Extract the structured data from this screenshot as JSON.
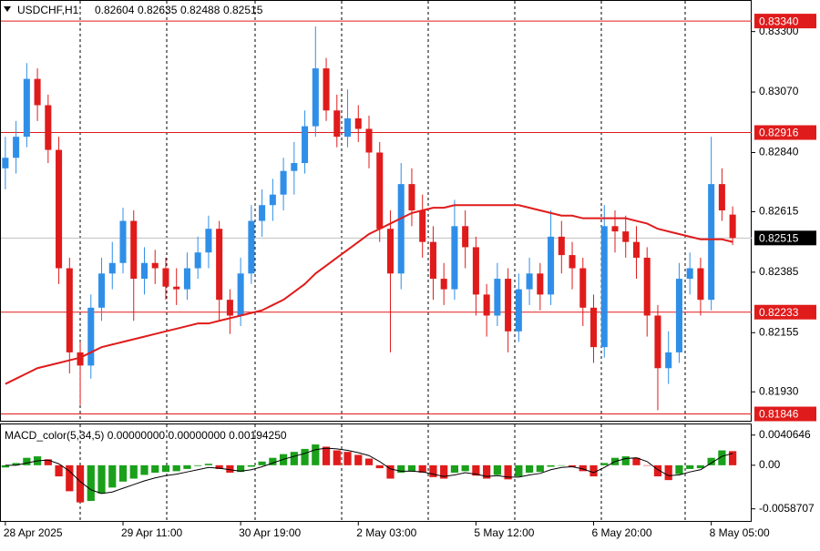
{
  "chart_data": {
    "type": "candlestick",
    "title": "USDCHF,H1",
    "up_color": "#2f8fe8",
    "down_color": "#e01b1b",
    "ylim": [
      0.8182,
      0.8342
    ],
    "yticks": [
      {
        "value": 0.833,
        "label": "0.83300"
      },
      {
        "value": 0.8307,
        "label": "0.83070"
      },
      {
        "value": 0.8284,
        "label": "0.82840"
      },
      0.82615,
      0.82385,
      0.82155,
      {
        "value": 0.8193,
        "label": "0.81930"
      }
    ],
    "xlim": [
      -0.5,
      68.5
    ],
    "xticks": [
      {
        "value": 0,
        "label": "28 Apr 2025"
      },
      {
        "value": 11,
        "label": "29 Apr 11:00"
      },
      {
        "value": 22,
        "label": "30 Apr 19:00"
      },
      {
        "value": 33,
        "label": "2 May 03:00"
      },
      {
        "value": 44,
        "label": "5 May 12:00"
      },
      {
        "value": 55,
        "label": "6 May 20:00"
      },
      {
        "value": 66,
        "label": "8 May 05:00"
      }
    ],
    "levels": [
      {
        "value": 0.8334,
        "label": "0.83340"
      },
      0.82916,
      0.82233,
      0.81846
    ],
    "level_color": "#e01b1b",
    "candles": [
      [
        0.8278,
        0.829,
        0.827,
        0.8282
      ],
      [
        0.8282,
        0.8296,
        0.8276,
        0.829
      ],
      [
        0.829,
        0.8318,
        0.8286,
        0.8312
      ],
      [
        0.8312,
        0.8316,
        0.8296,
        0.8302
      ],
      [
        0.8302,
        0.8306,
        0.828,
        0.8285
      ],
      [
        0.8285,
        0.829,
        0.8234,
        0.824
      ],
      [
        0.824,
        0.8244,
        0.82,
        0.8208
      ],
      [
        0.8208,
        0.8212,
        0.8188,
        0.8203
      ],
      [
        0.8203,
        0.823,
        0.8198,
        0.8225
      ],
      [
        0.8225,
        0.8244,
        0.822,
        0.8238
      ],
      [
        0.8238,
        0.825,
        0.8232,
        0.8242
      ],
      [
        0.8242,
        0.8263,
        0.8238,
        0.8258
      ],
      [
        0.8258,
        0.8262,
        0.822,
        0.8236
      ],
      [
        0.8236,
        0.8248,
        0.823,
        0.8242
      ],
      [
        0.8242,
        0.8247,
        0.8234,
        0.824
      ],
      [
        0.824,
        0.8244,
        0.8228,
        0.8233
      ],
      [
        0.8233,
        0.824,
        0.8226,
        0.8232
      ],
      [
        0.8232,
        0.8246,
        0.8228,
        0.824
      ],
      [
        0.824,
        0.8252,
        0.8236,
        0.8246
      ],
      [
        0.8246,
        0.826,
        0.824,
        0.8255
      ],
      [
        0.8255,
        0.8258,
        0.822,
        0.8228
      ],
      [
        0.8228,
        0.8232,
        0.8215,
        0.8222
      ],
      [
        0.8222,
        0.8244,
        0.8218,
        0.8238
      ],
      [
        0.8238,
        0.8264,
        0.8234,
        0.8258
      ],
      [
        0.8258,
        0.827,
        0.8252,
        0.8264
      ],
      [
        0.8264,
        0.8274,
        0.8258,
        0.8268
      ],
      [
        0.8268,
        0.8282,
        0.8262,
        0.8277
      ],
      [
        0.8277,
        0.8288,
        0.8268,
        0.828
      ],
      [
        0.828,
        0.83,
        0.8276,
        0.8294
      ],
      [
        0.8294,
        0.8332,
        0.829,
        0.8316
      ],
      [
        0.8316,
        0.832,
        0.8296,
        0.83
      ],
      [
        0.83,
        0.8306,
        0.8286,
        0.829
      ],
      [
        0.829,
        0.8308,
        0.8286,
        0.8297
      ],
      [
        0.8297,
        0.8302,
        0.8288,
        0.8293
      ],
      [
        0.8293,
        0.8298,
        0.8278,
        0.8284
      ],
      [
        0.8284,
        0.8288,
        0.825,
        0.8255
      ],
      [
        0.8255,
        0.8262,
        0.8208,
        0.8238
      ],
      [
        0.8238,
        0.828,
        0.8232,
        0.8272
      ],
      [
        0.8272,
        0.8278,
        0.8256,
        0.8262
      ],
      [
        0.8262,
        0.8268,
        0.8244,
        0.825
      ],
      [
        0.825,
        0.8256,
        0.8228,
        0.8236
      ],
      [
        0.8236,
        0.8242,
        0.8226,
        0.8232
      ],
      [
        0.8232,
        0.8266,
        0.8228,
        0.8256
      ],
      [
        0.8256,
        0.8262,
        0.824,
        0.8248
      ],
      [
        0.8248,
        0.8252,
        0.8222,
        0.823
      ],
      [
        0.823,
        0.8234,
        0.8214,
        0.8222
      ],
      [
        0.8222,
        0.8242,
        0.8218,
        0.8236
      ],
      [
        0.8236,
        0.824,
        0.8208,
        0.8216
      ],
      [
        0.8216,
        0.8238,
        0.8212,
        0.8232
      ],
      [
        0.8232,
        0.8244,
        0.8226,
        0.8238
      ],
      [
        0.8238,
        0.8242,
        0.8224,
        0.823
      ],
      [
        0.823,
        0.8262,
        0.8226,
        0.8252
      ],
      [
        0.8252,
        0.8258,
        0.8238,
        0.8245
      ],
      [
        0.8245,
        0.825,
        0.8232,
        0.824
      ],
      [
        0.824,
        0.8244,
        0.8218,
        0.8225
      ],
      [
        0.8225,
        0.823,
        0.8204,
        0.821
      ],
      [
        0.821,
        0.8264,
        0.8206,
        0.8256
      ],
      [
        0.8256,
        0.8262,
        0.8246,
        0.8254
      ],
      [
        0.8254,
        0.826,
        0.8244,
        0.825
      ],
      [
        0.825,
        0.8256,
        0.8236,
        0.8244
      ],
      [
        0.8244,
        0.8248,
        0.8214,
        0.8222
      ],
      [
        0.8222,
        0.8226,
        0.8186,
        0.8202
      ],
      [
        0.8202,
        0.8216,
        0.8196,
        0.8208
      ],
      [
        0.8208,
        0.8242,
        0.8204,
        0.8236
      ],
      [
        0.8236,
        0.8246,
        0.823,
        0.824
      ],
      [
        0.824,
        0.8244,
        0.8222,
        0.8228
      ],
      [
        0.8228,
        0.829,
        0.8224,
        0.8272
      ],
      [
        0.8272,
        0.8278,
        0.8258,
        0.8262
      ],
      [
        0.82604,
        0.82635,
        0.82488,
        0.82515
      ]
    ],
    "moving_average": {
      "color": "#e01b1b",
      "values": [
        0.8196,
        0.8198,
        0.82,
        0.8202,
        0.8203,
        0.8204,
        0.8205,
        0.8206,
        0.8208,
        0.821,
        0.8211,
        0.8212,
        0.8213,
        0.8214,
        0.8215,
        0.8216,
        0.8217,
        0.8218,
        0.8219,
        0.8219,
        0.822,
        0.8221,
        0.8222,
        0.8223,
        0.8224,
        0.8226,
        0.8228,
        0.8231,
        0.8234,
        0.8238,
        0.8241,
        0.8244,
        0.8247,
        0.825,
        0.8253,
        0.8255,
        0.8257,
        0.8259,
        0.8261,
        0.8262,
        0.8263,
        0.8263,
        0.8264,
        0.8264,
        0.8264,
        0.8264,
        0.8264,
        0.8264,
        0.8264,
        0.8263,
        0.8262,
        0.8261,
        0.826,
        0.826,
        0.8259,
        0.8259,
        0.8259,
        0.8259,
        0.8259,
        0.8258,
        0.8257,
        0.8255,
        0.8254,
        0.8253,
        0.8252,
        0.8251,
        0.8251,
        0.8251,
        0.825
      ]
    },
    "macd": {
      "label": "MACD_color(5,34,5) 0.00000000 0.00000000 0.00194250",
      "up_color": "#1aa01a",
      "down_color": "#e01b1b",
      "signal_color": "#000000",
      "ylim": [
        -0.0075,
        0.0055
      ],
      "yticks": [
        0.0040646,
        {
          "value": 0,
          "label": "0.00"
        },
        -0.0058707
      ],
      "histogram": [
        -0.0003,
        0.0003,
        0.001,
        0.0012,
        0.0008,
        -0.0015,
        -0.0035,
        -0.005,
        -0.0048,
        -0.0038,
        -0.003,
        -0.0022,
        -0.0018,
        -0.0013,
        -0.001,
        -0.0009,
        -0.0008,
        -0.0005,
        -0.0001,
        0.0002,
        -0.0005,
        -0.001,
        -0.0009,
        -0.0002,
        0.0005,
        0.001,
        0.0015,
        0.0018,
        0.0022,
        0.0028,
        0.0025,
        0.002,
        0.0018,
        0.0014,
        0.0009,
        -0.0004,
        -0.0018,
        -0.001,
        -0.0008,
        -0.001,
        -0.0016,
        -0.0018,
        -0.001,
        -0.0008,
        -0.0014,
        -0.0018,
        -0.0013,
        -0.0019,
        -0.0015,
        -0.001,
        -0.0009,
        -0.0002,
        0.0,
        -0.0002,
        -0.0008,
        -0.0015,
        0.0003,
        0.001,
        0.0012,
        0.001,
        0.0,
        -0.0015,
        -0.002,
        -0.0012,
        -0.0005,
        -0.0004,
        0.001,
        0.002,
        0.0019
      ],
      "signal": [
        0.0,
        0.0,
        0.0003,
        0.0006,
        0.0007,
        0.0002,
        -0.0008,
        -0.0022,
        -0.0033,
        -0.0038,
        -0.0036,
        -0.0031,
        -0.0026,
        -0.0021,
        -0.0017,
        -0.0014,
        -0.0012,
        -0.0009,
        -0.0006,
        -0.0003,
        -0.0004,
        -0.0006,
        -0.0008,
        -0.0006,
        -0.0002,
        0.0003,
        0.0008,
        0.0012,
        0.0016,
        0.0021,
        0.0023,
        0.0022,
        0.002,
        0.0017,
        0.0013,
        0.0005,
        -0.0005,
        -0.0008,
        -0.0008,
        -0.0009,
        -0.0012,
        -0.0015,
        -0.0013,
        -0.001,
        -0.0012,
        -0.0015,
        -0.0014,
        -0.0016,
        -0.0016,
        -0.0013,
        -0.0011,
        -0.0006,
        -0.0003,
        -0.0002,
        -0.0005,
        -0.001,
        -0.0003,
        0.0005,
        0.0009,
        0.001,
        0.0005,
        -0.0006,
        -0.0014,
        -0.0013,
        -0.0009,
        -0.0006,
        0.0003,
        0.0012,
        0.0016
      ]
    }
  }
}
